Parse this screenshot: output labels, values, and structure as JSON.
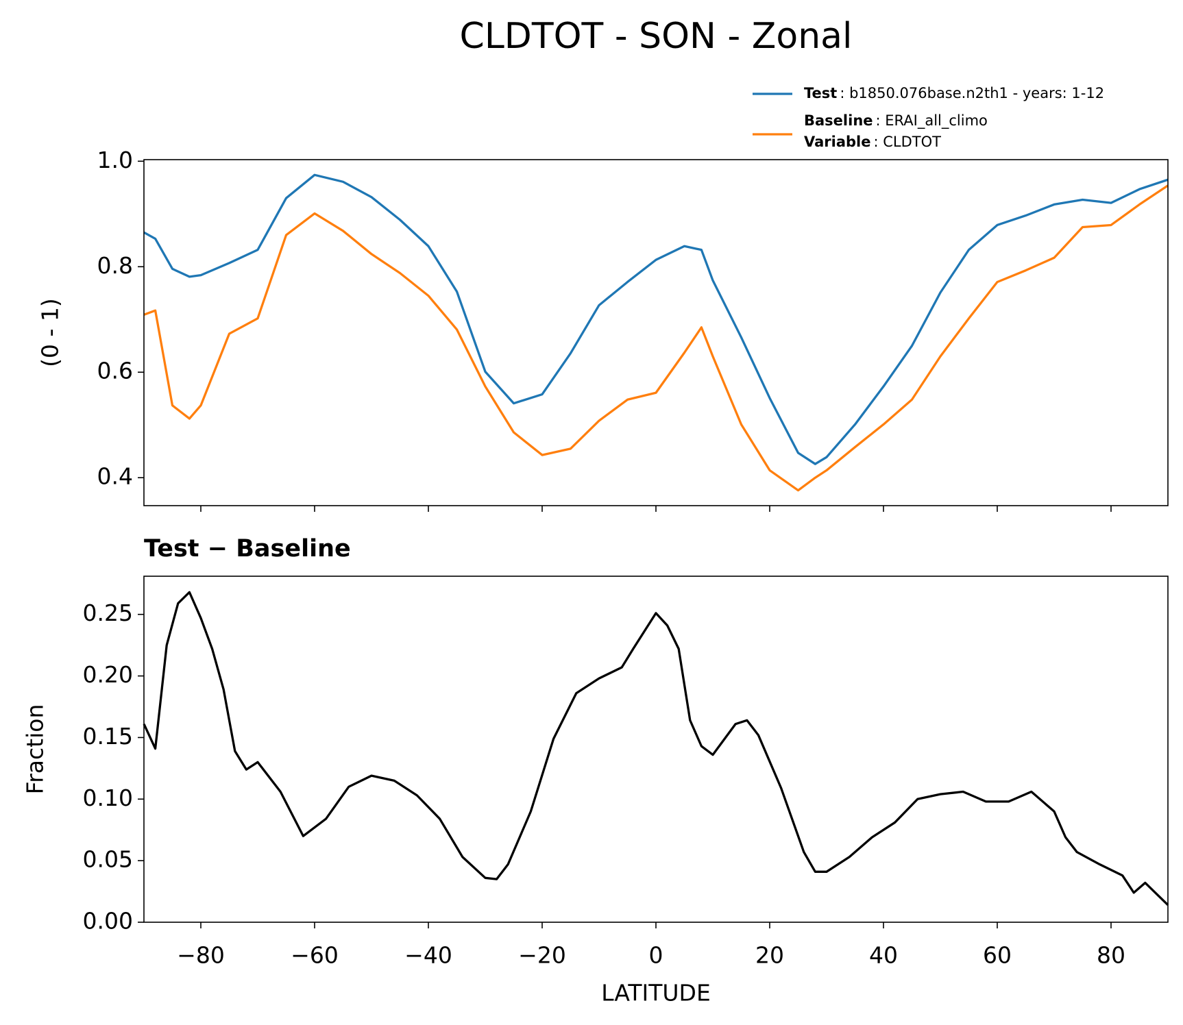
{
  "title": "CLDTOT - SON - Zonal",
  "chart_data": [
    {
      "type": "line",
      "ylabel": "(0 - 1)",
      "x": [
        -90,
        -88,
        -85,
        -82,
        -80,
        -75,
        -70,
        -65,
        -60,
        -55,
        -50,
        -45,
        -40,
        -35,
        -30,
        -25,
        -20,
        -15,
        -10,
        -5,
        0,
        5,
        8,
        10,
        15,
        20,
        25,
        28,
        30,
        35,
        40,
        45,
        50,
        55,
        60,
        65,
        70,
        75,
        80,
        85,
        90
      ],
      "series": [
        {
          "name": "Test",
          "description": ": b1850.076base.n2th1 - years: 1-12",
          "color": "#1f77b4",
          "values": [
            0.865,
            0.853,
            0.796,
            0.781,
            0.784,
            0.807,
            0.832,
            0.93,
            0.974,
            0.961,
            0.932,
            0.889,
            0.839,
            0.753,
            0.601,
            0.541,
            0.558,
            0.636,
            0.727,
            0.771,
            0.813,
            0.839,
            0.832,
            0.774,
            0.666,
            0.551,
            0.447,
            0.426,
            0.439,
            0.501,
            0.573,
            0.65,
            0.751,
            0.832,
            0.879,
            0.897,
            0.918,
            0.927,
            0.921,
            0.947,
            0.965
          ]
        },
        {
          "name": "Baseline",
          "description": ": ERAI_all_climo",
          "color": "#ff7f0e",
          "values": [
            0.709,
            0.717,
            0.537,
            0.512,
            0.537,
            0.673,
            0.702,
            0.86,
            0.901,
            0.868,
            0.824,
            0.788,
            0.745,
            0.681,
            0.573,
            0.486,
            0.443,
            0.455,
            0.508,
            0.548,
            0.561,
            0.637,
            0.685,
            0.63,
            0.501,
            0.414,
            0.376,
            0.4,
            0.414,
            0.458,
            0.501,
            0.548,
            0.63,
            0.702,
            0.771,
            0.793,
            0.817,
            0.875,
            0.879,
            0.918,
            0.954
          ]
        }
      ],
      "legend_note": {
        "name": "Variable",
        "description": ": CLDTOT"
      },
      "xlim": [
        -90,
        90
      ],
      "xticks": [
        -80,
        -60,
        -40,
        -20,
        0,
        20,
        40,
        60,
        80
      ],
      "ylim": [
        0.347,
        1.003
      ],
      "yticks": [
        0.4,
        0.6,
        0.8,
        {
          "value": 1,
          "label": "1.0"
        }
      ]
    },
    {
      "type": "line",
      "title": "Test − Baseline",
      "ylabel": "Fraction",
      "xlabel": "LATITUDE",
      "x": [
        -90,
        -88,
        -86,
        -84,
        -82,
        -80,
        -78,
        -76,
        -74,
        -72,
        -70,
        -66,
        -62,
        -58,
        -54,
        -50,
        -46,
        -42,
        -38,
        -34,
        -30,
        -28,
        -26,
        -22,
        -18,
        -14,
        -10,
        -6,
        -4,
        0,
        2,
        4,
        6,
        8,
        10,
        14,
        16,
        18,
        22,
        26,
        28,
        30,
        34,
        38,
        42,
        46,
        50,
        54,
        58,
        62,
        66,
        70,
        72,
        74,
        78,
        82,
        84,
        86,
        88,
        90
      ],
      "series": [
        {
          "color": "#000000",
          "values": [
            0.161,
            0.141,
            0.225,
            0.259,
            0.268,
            0.247,
            0.222,
            0.189,
            0.139,
            0.124,
            0.13,
            0.106,
            0.07,
            0.084,
            0.11,
            0.119,
            0.115,
            0.103,
            0.084,
            0.053,
            0.036,
            0.035,
            0.047,
            0.09,
            0.149,
            0.186,
            0.198,
            0.207,
            0.222,
            0.251,
            0.241,
            0.222,
            0.164,
            0.143,
            0.136,
            0.161,
            0.164,
            0.152,
            0.109,
            0.057,
            0.041,
            0.041,
            0.053,
            0.069,
            0.081,
            0.1,
            0.104,
            0.106,
            0.098,
            0.098,
            0.106,
            0.09,
            0.069,
            0.057,
            0.047,
            0.038,
            0.024,
            0.032,
            0.023,
            0.014
          ]
        }
      ],
      "xlim": [
        -90,
        90
      ],
      "xticks": [
        {
          "value": -80,
          "label": "−80"
        },
        {
          "value": -60,
          "label": "−60"
        },
        {
          "value": -40,
          "label": "−40"
        },
        {
          "value": -20,
          "label": "−20"
        },
        0,
        20,
        40,
        60,
        80
      ],
      "ylim": [
        0,
        0.281
      ],
      "yticks": [
        {
          "value": 0,
          "label": "0.00"
        },
        0.05,
        {
          "value": 0.1,
          "label": "0.10"
        },
        0.15,
        {
          "value": 0.2,
          "label": "0.20"
        },
        0.25
      ]
    }
  ]
}
